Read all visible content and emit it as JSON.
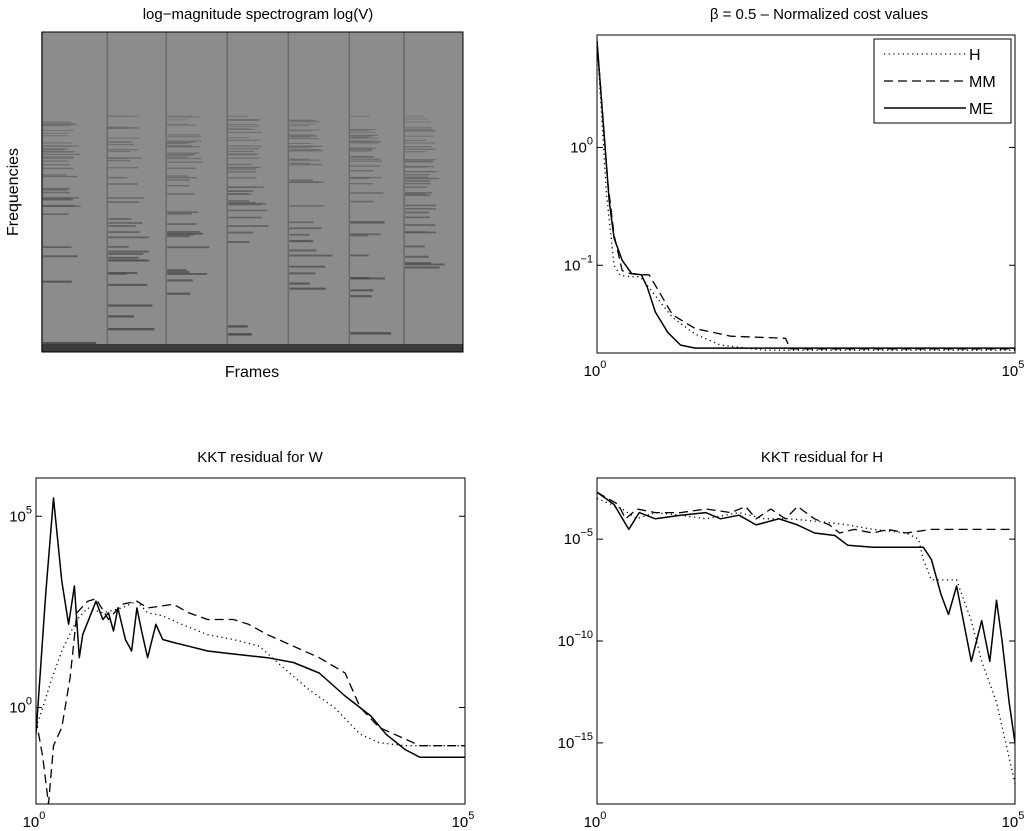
{
  "figure": {
    "panels": [
      {
        "title": "log−magnitude spectrogram log(V)",
        "xlabel": "Frames",
        "ylabel": "Frequencies"
      },
      {
        "title": "β = 0.5 – Normalized cost values"
      },
      {
        "title": "KKT residual for W"
      },
      {
        "title": "KKT residual for H"
      }
    ]
  },
  "chart_data": [
    {
      "type": "heatmap",
      "title": "log−magnitude spectrogram log(V)",
      "xlabel": "Frames",
      "ylabel": "Frequencies",
      "note_onsets_fraction": [
        0.0,
        0.155,
        0.295,
        0.44,
        0.585,
        0.73,
        0.86
      ],
      "colormap": "gray",
      "grid": false
    },
    {
      "type": "line",
      "title": "β = 0.5 – Normalized cost values",
      "xscale": "log",
      "yscale": "log",
      "xlim": [
        1,
        100000
      ],
      "ylim": [
        0.018,
        9
      ],
      "xticks": [
        {
          "base": "10",
          "exp": "0"
        },
        {
          "base": "10",
          "exp": "5"
        }
      ],
      "yticks": [
        {
          "value": 1,
          "base": "10",
          "exp": "0"
        },
        {
          "value": 0.1,
          "base": "10",
          "exp": "−1"
        }
      ],
      "legend": {
        "position": "top-right"
      },
      "grid": false,
      "series": [
        {
          "name": "H",
          "style": "dotted",
          "points": [
            [
              1,
              8
            ],
            [
              1.3,
              0.4
            ],
            [
              1.6,
              0.1
            ],
            [
              1.9,
              0.082
            ],
            [
              2.5,
              0.08
            ],
            [
              3.2,
              0.08
            ],
            [
              3.5,
              0.076
            ],
            [
              5,
              0.055
            ],
            [
              8,
              0.036
            ],
            [
              15,
              0.026
            ],
            [
              30,
              0.021
            ],
            [
              100,
              0.019
            ],
            [
              100000,
              0.019
            ]
          ]
        },
        {
          "name": "MM",
          "style": "dashed",
          "points": [
            [
              1,
              8
            ],
            [
              1.35,
              0.5
            ],
            [
              1.6,
              0.18
            ],
            [
              2,
              0.09
            ],
            [
              2.5,
              0.085
            ],
            [
              3.5,
              0.083
            ],
            [
              4.2,
              0.083
            ],
            [
              5.5,
              0.06
            ],
            [
              8,
              0.038
            ],
            [
              15,
              0.029
            ],
            [
              40,
              0.025
            ],
            [
              180,
              0.024
            ],
            [
              205,
              0.0195
            ],
            [
              100000,
              0.0195
            ]
          ]
        },
        {
          "name": "ME",
          "style": "solid",
          "points": [
            [
              1,
              8
            ],
            [
              1.4,
              0.35
            ],
            [
              1.6,
              0.17
            ],
            [
              2,
              0.11
            ],
            [
              2.6,
              0.085
            ],
            [
              3.4,
              0.083
            ],
            [
              4,
              0.065
            ],
            [
              5,
              0.04
            ],
            [
              7,
              0.027
            ],
            [
              10,
              0.021
            ],
            [
              15,
              0.0198
            ],
            [
              100000,
              0.0198
            ]
          ]
        }
      ]
    },
    {
      "type": "line",
      "title": "KKT residual for W",
      "xscale": "log",
      "yscale": "log",
      "xlim": [
        1,
        100000
      ],
      "ylim": [
        0.003,
        1000000
      ],
      "xticks": [
        {
          "base": "10",
          "exp": "0"
        },
        {
          "base": "10",
          "exp": "5"
        }
      ],
      "yticks": [
        {
          "value": 100000,
          "base": "10",
          "exp": "5"
        },
        {
          "value": 1,
          "base": "10",
          "exp": "0"
        }
      ],
      "grid": false,
      "series": [
        {
          "name": "H",
          "style": "dotted",
          "points": [
            [
              1,
              0.3
            ],
            [
              1.2,
              1
            ],
            [
              1.5,
              5
            ],
            [
              2,
              30
            ],
            [
              3,
              200
            ],
            [
              4,
              400
            ],
            [
              6,
              300
            ],
            [
              10,
              400
            ],
            [
              15,
              600
            ],
            [
              20,
              300
            ],
            [
              30,
              250
            ],
            [
              50,
              150
            ],
            [
              100,
              80
            ],
            [
              200,
              60
            ],
            [
              400,
              40
            ],
            [
              800,
              10
            ],
            [
              1500,
              3
            ],
            [
              3000,
              1
            ],
            [
              6000,
              0.2
            ],
            [
              10000,
              0.12
            ],
            [
              20000,
              0.1
            ],
            [
              100000,
              0.1
            ]
          ]
        },
        {
          "name": "MM",
          "style": "dashed",
          "points": [
            [
              1,
              0.5
            ],
            [
              1.2,
              0.05
            ],
            [
              1.4,
              0.003
            ],
            [
              1.6,
              0.1
            ],
            [
              2,
              0.3
            ],
            [
              2.5,
              6
            ],
            [
              3,
              300
            ],
            [
              4,
              600
            ],
            [
              5,
              700
            ],
            [
              7,
              200
            ],
            [
              10,
              500
            ],
            [
              15,
              600
            ],
            [
              20,
              400
            ],
            [
              40,
              500
            ],
            [
              60,
              300
            ],
            [
              100,
              200
            ],
            [
              200,
              200
            ],
            [
              300,
              150
            ],
            [
              500,
              80
            ],
            [
              1000,
              40
            ],
            [
              2000,
              20
            ],
            [
              4000,
              8
            ],
            [
              6000,
              1
            ],
            [
              10000,
              0.3
            ],
            [
              15000,
              0.2
            ],
            [
              30000,
              0.1
            ],
            [
              100000,
              0.1
            ]
          ]
        },
        {
          "name": "ME",
          "style": "solid",
          "points": [
            [
              1,
              0.2
            ],
            [
              1.3,
              1000
            ],
            [
              1.6,
              300000
            ],
            [
              2,
              2000
            ],
            [
              2.4,
              150
            ],
            [
              2.8,
              1500
            ],
            [
              3.2,
              20
            ],
            [
              3.5,
              80
            ],
            [
              5,
              600
            ],
            [
              6,
              200
            ],
            [
              7,
              300
            ],
            [
              8,
              100
            ],
            [
              9,
              400
            ],
            [
              11,
              60
            ],
            [
              13,
              30
            ],
            [
              15,
              400
            ],
            [
              17,
              100
            ],
            [
              20,
              20
            ],
            [
              25,
              150
            ],
            [
              30,
              60
            ],
            [
              40,
              50
            ],
            [
              60,
              40
            ],
            [
              100,
              30
            ],
            [
              200,
              25
            ],
            [
              500,
              20
            ],
            [
              1000,
              15
            ],
            [
              2000,
              8
            ],
            [
              4000,
              2
            ],
            [
              8000,
              0.6
            ],
            [
              12000,
              0.2
            ],
            [
              20000,
              0.08
            ],
            [
              30000,
              0.05
            ],
            [
              60000,
              0.05
            ],
            [
              100000,
              0.05
            ]
          ]
        }
      ]
    },
    {
      "type": "line",
      "title": "KKT residual for H",
      "xscale": "log",
      "yscale": "log",
      "xlim": [
        1,
        100000
      ],
      "ylim": [
        1e-18,
        0.01
      ],
      "xticks": [
        {
          "base": "10",
          "exp": "0"
        },
        {
          "base": "10",
          "exp": "5"
        }
      ],
      "yticks": [
        {
          "value": 1e-05,
          "base": "10",
          "exp": "−5"
        },
        {
          "value": 1e-10,
          "base": "10",
          "exp": "−10"
        },
        {
          "value": 1e-15,
          "base": "10",
          "exp": "−15"
        }
      ],
      "grid": false,
      "series": [
        {
          "name": "H",
          "style": "dotted",
          "points": [
            [
              1,
              0.001
            ],
            [
              2,
              0.0003
            ],
            [
              3,
              0.0001
            ],
            [
              5,
              0.0002
            ],
            [
              10,
              0.00015
            ],
            [
              20,
              0.0001
            ],
            [
              50,
              0.0002
            ],
            [
              100,
              0.0001
            ],
            [
              200,
              0.0001
            ],
            [
              500,
              7e-05
            ],
            [
              1000,
              5e-05
            ],
            [
              2000,
              3e-05
            ],
            [
              5000,
              2e-05
            ],
            [
              7000,
              1e-05
            ],
            [
              8000,
              1e-06
            ],
            [
              10000,
              1e-07
            ],
            [
              20000,
              1e-07
            ],
            [
              30000,
              1e-09
            ],
            [
              40000,
              1e-11
            ],
            [
              60000,
              1e-13
            ],
            [
              100000,
              1e-17
            ]
          ]
        },
        {
          "name": "MM",
          "style": "dashed",
          "points": [
            [
              1,
              0.002
            ],
            [
              1.8,
              0.0005
            ],
            [
              2.2,
              0.0001
            ],
            [
              3,
              0.0003
            ],
            [
              5,
              0.0002
            ],
            [
              10,
              0.0002
            ],
            [
              20,
              0.0003
            ],
            [
              40,
              0.0002
            ],
            [
              60,
              0.0004
            ],
            [
              80,
              0.0001
            ],
            [
              120,
              0.0003
            ],
            [
              180,
              0.0001
            ],
            [
              250,
              0.0004
            ],
            [
              400,
              0.0001
            ],
            [
              600,
              5e-05
            ],
            [
              800,
              2e-05
            ],
            [
              1200,
              3e-05
            ],
            [
              2000,
              2e-05
            ],
            [
              3000,
              3e-05
            ],
            [
              5000,
              2e-05
            ],
            [
              10000,
              3e-05
            ],
            [
              20000,
              3e-05
            ],
            [
              100000,
              3e-05
            ]
          ]
        },
        {
          "name": "ME",
          "style": "solid",
          "points": [
            [
              1,
              0.002
            ],
            [
              1.6,
              0.0005
            ],
            [
              2.4,
              3e-05
            ],
            [
              3.2,
              0.0002
            ],
            [
              5,
              0.0001
            ],
            [
              10,
              0.00015
            ],
            [
              20,
              0.0002
            ],
            [
              30,
              0.0001
            ],
            [
              50,
              0.00015
            ],
            [
              80,
              5e-05
            ],
            [
              150,
              0.0001
            ],
            [
              250,
              5e-05
            ],
            [
              400,
              2e-05
            ],
            [
              700,
              1.5e-05
            ],
            [
              1000,
              5e-06
            ],
            [
              2000,
              4e-06
            ],
            [
              4000,
              4e-06
            ],
            [
              8000,
              4e-06
            ],
            [
              10000,
              1e-06
            ],
            [
              13000,
              2e-08
            ],
            [
              16000,
              2e-09
            ],
            [
              20000,
              5e-08
            ],
            [
              30000,
              1e-11
            ],
            [
              40000,
              1e-09
            ],
            [
              50000,
              1e-11
            ],
            [
              60000,
              1e-08
            ],
            [
              70000,
              1e-10
            ],
            [
              85000,
              1e-13
            ],
            [
              100000,
              1e-15
            ]
          ]
        }
      ]
    }
  ]
}
